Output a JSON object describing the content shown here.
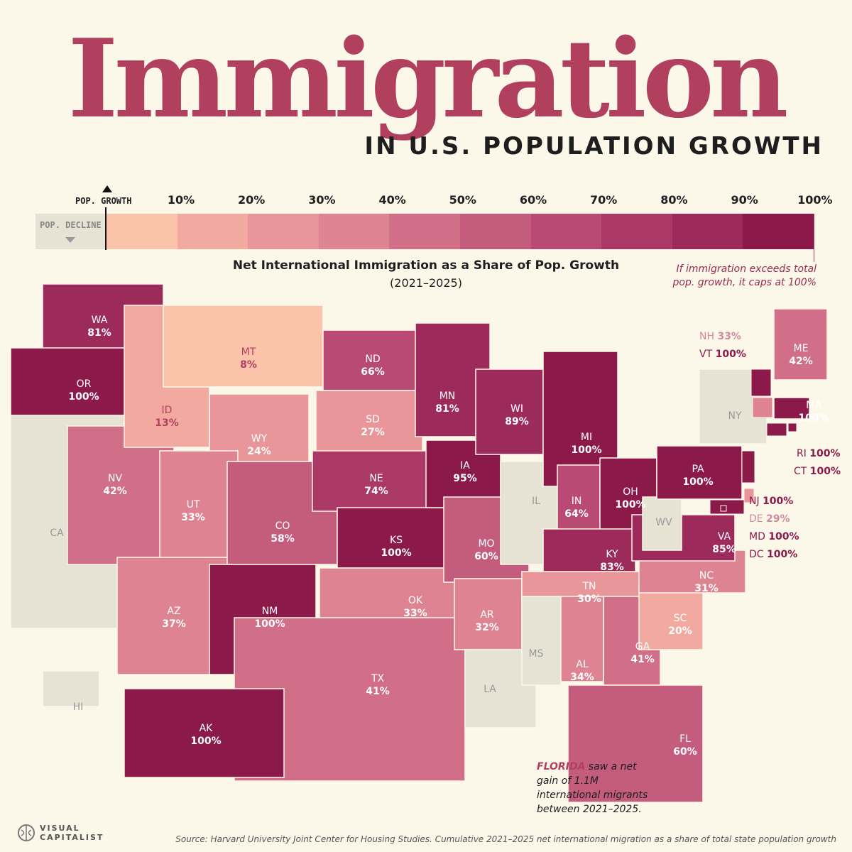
{
  "title": "Immigration",
  "subtitle": "IN U.S. POPULATION GROWTH",
  "legend": {
    "growth_label": "POP. GROWTH",
    "decline_label": "POP. DECLINE",
    "ticks": [
      "10%",
      "20%",
      "30%",
      "40%",
      "50%",
      "60%",
      "70%",
      "80%",
      "90%",
      "100%"
    ],
    "colors": [
      "#fcc3ab",
      "#f2a9a0",
      "#e8969a",
      "#de8392",
      "#d16e88",
      "#c45c7e",
      "#b84a73",
      "#aa3967",
      "#9c2a5b",
      "#8b1a4b"
    ],
    "decline_color": "#e6e3d4"
  },
  "chart_title": "Net International Immigration as a Share of Pop. Growth",
  "chart_years": "(2021–2025)",
  "cap_note": "If immigration exceeds total pop. growth, it caps at 100%",
  "map_data": {
    "states": [
      {
        "code": "WA",
        "value": "81%",
        "share": 81
      },
      {
        "code": "OR",
        "value": "100%",
        "share": 100
      },
      {
        "code": "CA",
        "value": "",
        "share": null
      },
      {
        "code": "NV",
        "value": "42%",
        "share": 42
      },
      {
        "code": "ID",
        "value": "13%",
        "share": 13
      },
      {
        "code": "MT",
        "value": "8%",
        "share": 8
      },
      {
        "code": "WY",
        "value": "24%",
        "share": 24
      },
      {
        "code": "UT",
        "value": "33%",
        "share": 33
      },
      {
        "code": "AZ",
        "value": "37%",
        "share": 37
      },
      {
        "code": "CO",
        "value": "58%",
        "share": 58
      },
      {
        "code": "NM",
        "value": "100%",
        "share": 100
      },
      {
        "code": "ND",
        "value": "66%",
        "share": 66
      },
      {
        "code": "SD",
        "value": "27%",
        "share": 27
      },
      {
        "code": "NE",
        "value": "74%",
        "share": 74
      },
      {
        "code": "KS",
        "value": "100%",
        "share": 100
      },
      {
        "code": "OK",
        "value": "33%",
        "share": 33
      },
      {
        "code": "TX",
        "value": "41%",
        "share": 41
      },
      {
        "code": "MN",
        "value": "81%",
        "share": 81
      },
      {
        "code": "IA",
        "value": "95%",
        "share": 95
      },
      {
        "code": "MO",
        "value": "60%",
        "share": 60
      },
      {
        "code": "AR",
        "value": "32%",
        "share": 32
      },
      {
        "code": "LA",
        "value": "",
        "share": null
      },
      {
        "code": "WI",
        "value": "89%",
        "share": 89
      },
      {
        "code": "IL",
        "value": "",
        "share": null
      },
      {
        "code": "MI",
        "value": "100%",
        "share": 100
      },
      {
        "code": "IN",
        "value": "64%",
        "share": 64
      },
      {
        "code": "OH",
        "value": "100%",
        "share": 100
      },
      {
        "code": "KY",
        "value": "83%",
        "share": 83
      },
      {
        "code": "TN",
        "value": "30%",
        "share": 30
      },
      {
        "code": "MS",
        "value": "",
        "share": null
      },
      {
        "code": "AL",
        "value": "34%",
        "share": 34
      },
      {
        "code": "GA",
        "value": "41%",
        "share": 41
      },
      {
        "code": "FL",
        "value": "60%",
        "share": 60
      },
      {
        "code": "SC",
        "value": "20%",
        "share": 20
      },
      {
        "code": "NC",
        "value": "31%",
        "share": 31
      },
      {
        "code": "VA",
        "value": "85%",
        "share": 85
      },
      {
        "code": "WV",
        "value": "",
        "share": null
      },
      {
        "code": "PA",
        "value": "100%",
        "share": 100
      },
      {
        "code": "NY",
        "value": "",
        "share": null
      },
      {
        "code": "ME",
        "value": "42%",
        "share": 42
      },
      {
        "code": "MA",
        "value": "100%",
        "share": 100
      },
      {
        "code": "AK",
        "value": "100%",
        "share": 100
      },
      {
        "code": "HI",
        "value": "",
        "share": null
      },
      {
        "code": "NH",
        "value": "33%",
        "share": 33
      },
      {
        "code": "VT",
        "value": "100%",
        "share": 100
      },
      {
        "code": "RI",
        "value": "100%",
        "share": 100
      },
      {
        "code": "CT",
        "value": "100%",
        "share": 100
      },
      {
        "code": "NJ",
        "value": "100%",
        "share": 100
      },
      {
        "code": "DE",
        "value": "29%",
        "share": 29
      },
      {
        "code": "MD",
        "value": "100%",
        "share": 100
      },
      {
        "code": "DC",
        "value": "100%",
        "share": 100
      }
    ]
  },
  "note": {
    "highlight": "FLORIDA",
    "text": "saw a net gain of 1.1M international migrants between 2021–2025."
  },
  "source": "Source: Harvard University Joint Center for Housing Studies. Cumulative 2021–2025 net international migration as a share of total state population growth",
  "logo": {
    "line1": "VISUAL",
    "line2": "CAPITALIST"
  }
}
